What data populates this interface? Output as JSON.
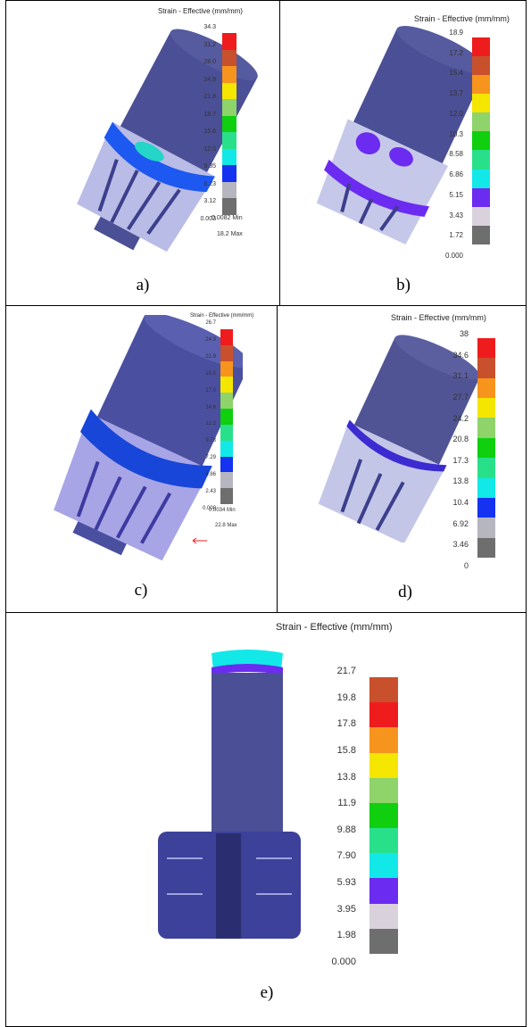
{
  "panels": [
    {
      "label": "a)",
      "title": "Strain - Effective (mm/mm)",
      "ticks": [
        "34.3",
        "31.2",
        "28.0",
        "24.9",
        "21.8",
        "18.7",
        "15.6",
        "12.5",
        "9.35",
        "6.23",
        "3.12",
        "0.003"
      ],
      "extra": [
        "0.0082  Min",
        "18.2  Max"
      ]
    },
    {
      "label": "b)",
      "title": "Strain - Effective (mm/mm)",
      "ticks": [
        "18.9",
        "17.2",
        "15.4",
        "13.7",
        "12.0",
        "10.3",
        "8.58",
        "6.86",
        "5.15",
        "3.43",
        "1.72",
        "0.000"
      ],
      "extra": []
    },
    {
      "label": "c)",
      "title": "Strain - Effective (mm/mm)",
      "ticks": [
        "26.7",
        "24.3",
        "21.9",
        "19.5",
        "17.0",
        "14.6",
        "12.2",
        "9.73",
        "7.29",
        "4.86",
        "2.43",
        "0.000"
      ],
      "extra": [
        "0.0034  Min",
        "22.8  Max"
      ]
    },
    {
      "label": "d)",
      "title": "Strain - Effective (mm/mm)",
      "ticks": [
        "38",
        "34.6",
        "31.1",
        "27.7",
        "24.2",
        "20.8",
        "17.3",
        "13.8",
        "10.4",
        "6.92",
        "3.46",
        "0"
      ],
      "extra": []
    },
    {
      "label": "e)",
      "title": "Strain - Effective (mm/mm)",
      "ticks": [
        "21.7",
        "19.8",
        "17.8",
        "15.8",
        "13.8",
        "11.9",
        "9.88",
        "7.90",
        "5.93",
        "3.95",
        "1.98",
        "0.000"
      ],
      "extra": []
    }
  ],
  "colors": {
    "scale_abcd": [
      "#ee1c1c",
      "#c9502c",
      "#f7941d",
      "#f5e600",
      "#8fd36b",
      "#0fcf0f",
      "#29e08a",
      "#13e8e8",
      "#1432f0",
      "#b6b6c0",
      "#6e6e6e"
    ],
    "scale_b": [
      "#ee1c1c",
      "#c9502c",
      "#f7941d",
      "#f5e600",
      "#8fd36b",
      "#0fcf0f",
      "#29e08a",
      "#13e8e8",
      "#6b2bf0",
      "#d9d2dc",
      "#6e6e6e"
    ],
    "scale_e": [
      "#c9502c",
      "#ee1c1c",
      "#f7941d",
      "#f5e600",
      "#8fd36b",
      "#0fcf0f",
      "#29e08a",
      "#13e8e8",
      "#6b2bf0",
      "#d9d2dc",
      "#6e6e6e"
    ],
    "mesh": "#3b3f8c",
    "mesh_light": "#b9bce6"
  }
}
